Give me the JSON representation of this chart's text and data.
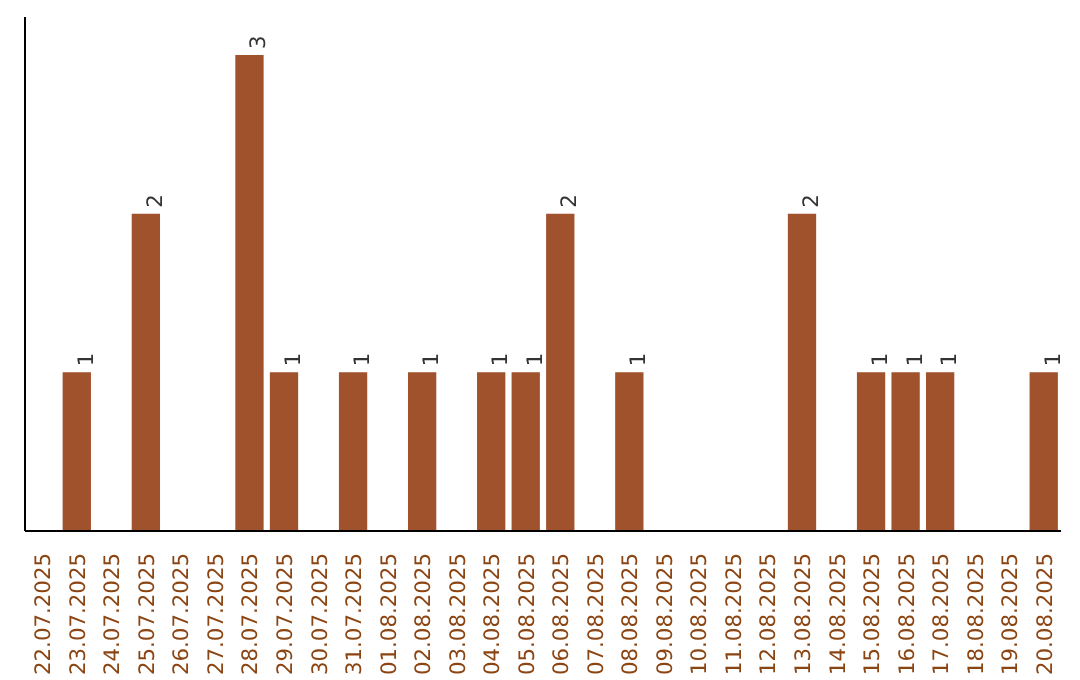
{
  "chart_data": {
    "type": "bar",
    "categories": [
      "22.07.2025",
      "23.07.2025",
      "24.07.2025",
      "25.07.2025",
      "26.07.2025",
      "27.07.2025",
      "28.07.2025",
      "29.07.2025",
      "30.07.2025",
      "31.07.2025",
      "01.08.2025",
      "02.08.2025",
      "03.08.2025",
      "04.08.2025",
      "05.08.2025",
      "06.08.2025",
      "07.08.2025",
      "08.08.2025",
      "09.08.2025",
      "10.08.2025",
      "11.08.2025",
      "12.08.2025",
      "13.08.2025",
      "14.08.2025",
      "15.08.2025",
      "16.08.2025",
      "17.08.2025",
      "18.08.2025",
      "19.08.2025",
      "20.08.2025"
    ],
    "values": [
      0,
      1,
      0,
      2,
      0,
      0,
      3,
      1,
      0,
      1,
      0,
      1,
      0,
      1,
      1,
      2,
      0,
      1,
      0,
      0,
      0,
      0,
      2,
      0,
      1,
      1,
      1,
      0,
      0,
      1
    ],
    "value_labels": [
      null,
      "1",
      null,
      "2",
      null,
      null,
      "3",
      "1",
      null,
      "1",
      null,
      "1",
      null,
      "1",
      "1",
      "2",
      null,
      "1",
      null,
      null,
      null,
      null,
      "2",
      null,
      "1",
      "1",
      "1",
      null,
      null,
      "1"
    ],
    "color": "#a0522d",
    "grid": false,
    "tick_labels": "x"
  }
}
